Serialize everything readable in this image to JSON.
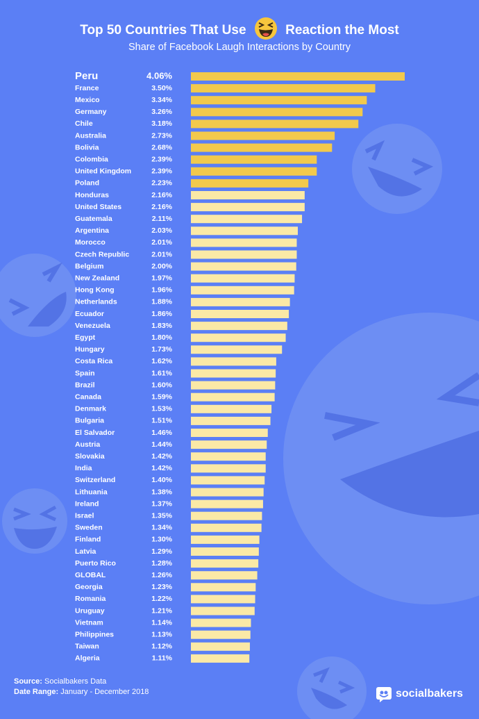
{
  "header": {
    "title_before": "Top 50 Countries That Use",
    "title_after": "Reaction the Most",
    "subtitle": "Share of Facebook Laugh Interactions by Country",
    "emoji_icon": "laughing-face-icon"
  },
  "colors": {
    "background": "#5b7ff5",
    "top10_bar": "#f2c94c",
    "other_bar": "#fbe9a6",
    "text": "#ffffff"
  },
  "chart_data": {
    "type": "bar",
    "orientation": "horizontal",
    "title": "Top 50 Countries That Use Reaction the Most",
    "subtitle": "Share of Facebook Laugh Interactions by Country",
    "xlabel": "",
    "ylabel": "",
    "xlim": [
      0,
      4.06
    ],
    "grid": false,
    "highlight_top_n": 10,
    "value_suffix": "%",
    "categories": [
      "Peru",
      "France",
      "Mexico",
      "Germany",
      "Chile",
      "Australia",
      "Bolivia",
      "Colombia",
      "United Kingdom",
      "Poland",
      "Honduras",
      "United States",
      "Guatemala",
      "Argentina",
      "Morocco",
      "Czech Republic",
      "Belgium",
      "New Zealand",
      "Hong Kong",
      "Netherlands",
      "Ecuador",
      "Venezuela",
      "Egypt",
      "Hungary",
      "Costa Rica",
      "Spain",
      "Brazil",
      "Canada",
      "Denmark",
      "Bulgaria",
      "El Salvador",
      "Austria",
      "Slovakia",
      "India",
      "Switzerland",
      "Lithuania",
      "Ireland",
      "Israel",
      "Sweden",
      "Finland",
      "Latvia",
      "Puerto Rico",
      "GLOBAL",
      "Georgia",
      "Romania",
      "Uruguay",
      "Vietnam",
      "Philippines",
      "Taiwan",
      "Algeria"
    ],
    "values": [
      4.06,
      3.5,
      3.34,
      3.26,
      3.18,
      2.73,
      2.68,
      2.39,
      2.39,
      2.23,
      2.16,
      2.16,
      2.11,
      2.03,
      2.01,
      2.01,
      2.0,
      1.97,
      1.96,
      1.88,
      1.86,
      1.83,
      1.8,
      1.73,
      1.62,
      1.61,
      1.6,
      1.59,
      1.53,
      1.51,
      1.46,
      1.44,
      1.42,
      1.42,
      1.4,
      1.38,
      1.37,
      1.35,
      1.34,
      1.3,
      1.29,
      1.28,
      1.26,
      1.23,
      1.22,
      1.21,
      1.14,
      1.13,
      1.12,
      1.11
    ],
    "labels": [
      "4.06%",
      "3.50%",
      "3.34%",
      "3.26%",
      "3.18%",
      "2.73%",
      "2.68%",
      "2.39%",
      "2.39%",
      "2.23%",
      "2.16%",
      "2.16%",
      "2.11%",
      "2.03%",
      "2.01%",
      "2.01%",
      "2.00%",
      "1.97%",
      "1.96%",
      "1.88%",
      "1.86%",
      "1.83%",
      "1.80%",
      "1.73%",
      "1.62%",
      "1.61%",
      "1.60%",
      "1.59%",
      "1.53%",
      "1.51%",
      "1.46%",
      "1.44%",
      "1.42%",
      "1.42%",
      "1.40%",
      "1.38%",
      "1.37%",
      "1.35%",
      "1.34%",
      "1.30%",
      "1.29%",
      "1.28%",
      "1.26%",
      "1.23%",
      "1.22%",
      "1.21%",
      "1.14%",
      "1.13%",
      "1.12%",
      "1.11%"
    ]
  },
  "footer": {
    "source_label": "Source:",
    "source_value": "Socialbakers Data",
    "range_label": "Date Range:",
    "range_value": "January - December 2018"
  },
  "brand": {
    "name": "socialbakers",
    "logo_icon": "socialbakers-logo-icon"
  }
}
